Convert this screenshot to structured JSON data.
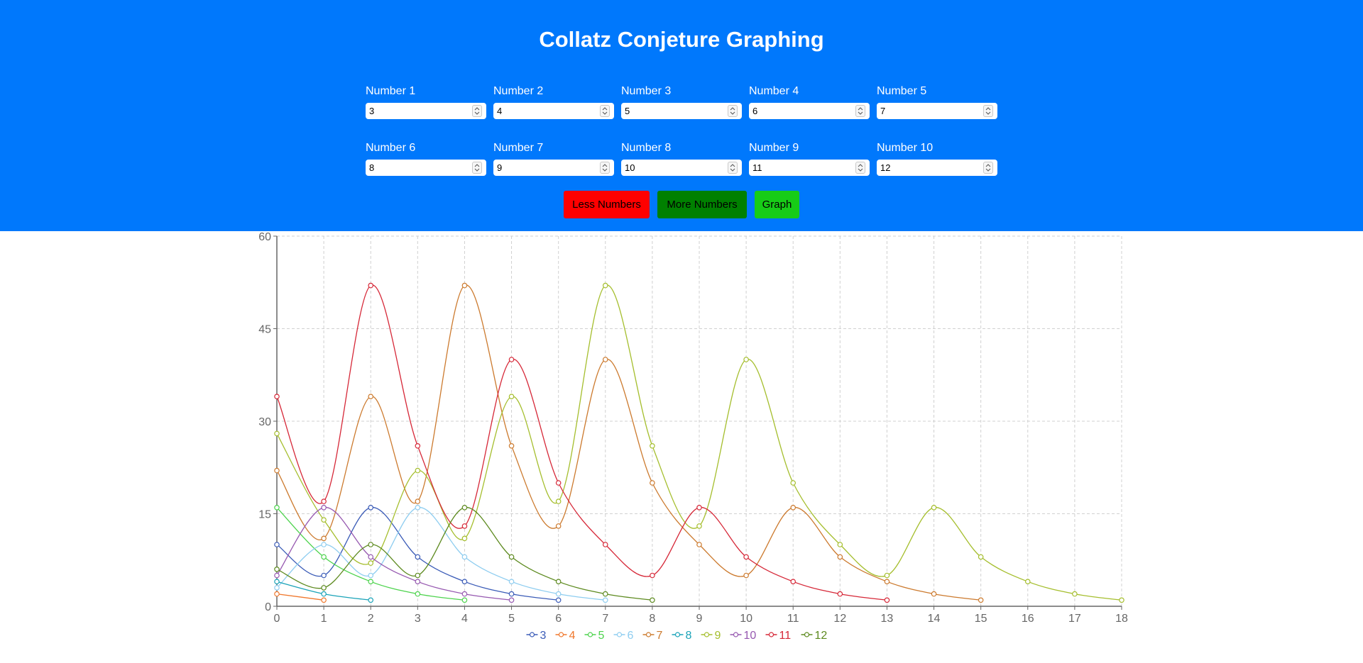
{
  "header": {
    "title": "Collatz Conjeture Graphing",
    "fields": [
      {
        "label": "Number 1",
        "value": "3"
      },
      {
        "label": "Number 2",
        "value": "4"
      },
      {
        "label": "Number 3",
        "value": "5"
      },
      {
        "label": "Number 4",
        "value": "6"
      },
      {
        "label": "Number 5",
        "value": "7"
      },
      {
        "label": "Number 6",
        "value": "8"
      },
      {
        "label": "Number 7",
        "value": "9"
      },
      {
        "label": "Number 8",
        "value": "10"
      },
      {
        "label": "Number 9",
        "value": "11"
      },
      {
        "label": "Number 10",
        "value": "12"
      }
    ],
    "buttons": {
      "less": "Less Numbers",
      "more": "More Numbers",
      "graph": "Graph"
    }
  },
  "colors": {
    "header_bg": "#0078fc",
    "less_button": "#ff0000",
    "more_button": "#008000",
    "graph_button": "#17cc17"
  },
  "chart_data": {
    "type": "line",
    "title": "",
    "xlabel": "",
    "ylabel": "",
    "xlim": [
      0,
      18
    ],
    "ylim": [
      0,
      60
    ],
    "xticks": [
      "0",
      "1",
      "2",
      "3",
      "4",
      "5",
      "6",
      "7",
      "8",
      "9",
      "10",
      "11",
      "12",
      "13",
      "14",
      "15",
      "16",
      "17",
      "18"
    ],
    "yticks": [
      "0",
      "15",
      "30",
      "45",
      "60"
    ],
    "grid": true,
    "legend_position": "bottom-center",
    "series": [
      {
        "name": "3",
        "color": "#3a5bb7",
        "values": [
          10,
          5,
          16,
          8,
          4,
          2,
          1
        ]
      },
      {
        "name": "4",
        "color": "#f0782d",
        "values": [
          2,
          1
        ]
      },
      {
        "name": "5",
        "color": "#4dd34d",
        "values": [
          16,
          8,
          4,
          2,
          1
        ]
      },
      {
        "name": "6",
        "color": "#8ecdf0",
        "values": [
          3,
          10,
          5,
          16,
          8,
          4,
          2,
          1
        ]
      },
      {
        "name": "7",
        "color": "#cc7a2e",
        "values": [
          22,
          11,
          34,
          17,
          52,
          26,
          13,
          40,
          20,
          10,
          5,
          16,
          8,
          4,
          2,
          1
        ]
      },
      {
        "name": "8",
        "color": "#1aa3b8",
        "values": [
          4,
          2,
          1
        ]
      },
      {
        "name": "9",
        "color": "#a5be2d",
        "values": [
          28,
          14,
          7,
          22,
          11,
          34,
          17,
          52,
          26,
          13,
          40,
          20,
          10,
          5,
          16,
          8,
          4,
          2,
          1
        ]
      },
      {
        "name": "10",
        "color": "#9658b0",
        "values": [
          5,
          16,
          8,
          4,
          2,
          1
        ]
      },
      {
        "name": "11",
        "color": "#d62838",
        "values": [
          34,
          17,
          52,
          26,
          13,
          40,
          20,
          10,
          5,
          16,
          8,
          4,
          2,
          1
        ]
      },
      {
        "name": "12",
        "color": "#5d8a1f",
        "values": [
          6,
          3,
          10,
          5,
          16,
          8,
          4,
          2,
          1
        ]
      }
    ]
  }
}
